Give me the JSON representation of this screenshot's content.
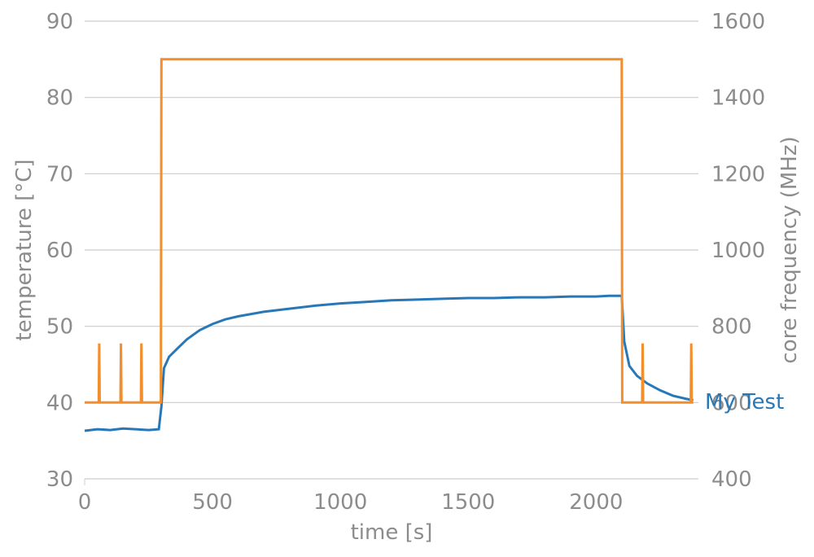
{
  "chart_data": {
    "type": "line",
    "title": "",
    "xlabel": "time [s]",
    "ylabel_left": "temperature [°C]",
    "ylabel_right": "core frequency (MHz)",
    "xlim": [
      0,
      2400
    ],
    "ylim_left": [
      30,
      90
    ],
    "ylim_right": [
      400,
      1600
    ],
    "grid": true,
    "legend": "none",
    "x_ticks": [
      0,
      500,
      1000,
      1500,
      2000
    ],
    "y_ticks_left": [
      30,
      40,
      50,
      60,
      70,
      80,
      90
    ],
    "y_ticks_right": [
      400,
      600,
      800,
      1000,
      1200,
      1400,
      1600
    ],
    "colors": {
      "temperature": "#2878b8",
      "frequency": "#f28e2b",
      "grid": "#cccccc",
      "text": "#8c8c8c"
    },
    "series": [
      {
        "name": "My Test",
        "axis": "left",
        "x": [
          0,
          50,
          100,
          150,
          200,
          250,
          290,
          300,
          310,
          330,
          360,
          400,
          450,
          500,
          550,
          600,
          700,
          800,
          900,
          1000,
          1100,
          1200,
          1300,
          1400,
          1500,
          1600,
          1700,
          1800,
          1900,
          2000,
          2050,
          2090,
          2100,
          2110,
          2130,
          2160,
          2200,
          2250,
          2300,
          2350,
          2380
        ],
        "y": [
          36.3,
          36.5,
          36.4,
          36.6,
          36.5,
          36.4,
          36.5,
          39.5,
          44.5,
          46.0,
          47.0,
          48.3,
          49.5,
          50.3,
          50.9,
          51.3,
          51.9,
          52.3,
          52.7,
          53.0,
          53.2,
          53.4,
          53.5,
          53.6,
          53.7,
          53.7,
          53.8,
          53.8,
          53.9,
          53.9,
          54.0,
          54.0,
          54.0,
          48.0,
          44.8,
          43.5,
          42.5,
          41.6,
          40.9,
          40.5,
          40.3
        ]
      },
      {
        "name": "",
        "axis": "right",
        "x": [
          0,
          55,
          57,
          59,
          140,
          142,
          144,
          220,
          222,
          224,
          298,
          300,
          2100,
          2102,
          2180,
          2182,
          2184,
          2370,
          2372,
          2374,
          2380
        ],
        "y": [
          600,
          600,
          755,
          600,
          600,
          755,
          600,
          600,
          755,
          600,
          600,
          1500,
          1500,
          600,
          600,
          755,
          600,
          600,
          755,
          600,
          600
        ]
      }
    ]
  }
}
